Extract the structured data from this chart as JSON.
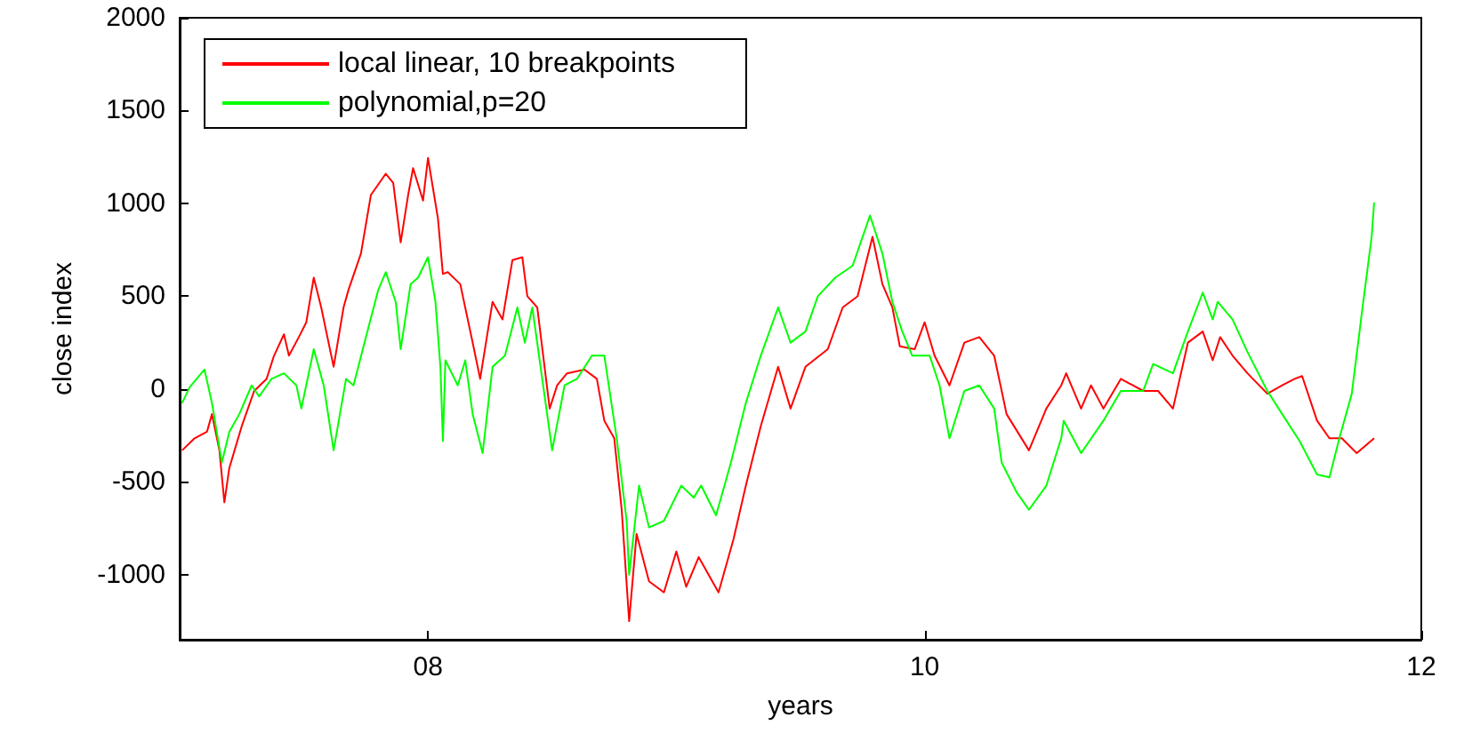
{
  "chart_data": {
    "type": "line",
    "xlabel": "years",
    "ylabel": "close index",
    "xlim": [
      7,
      12
    ],
    "xticks": [
      {
        "value": 8,
        "label": "08"
      },
      {
        "value": 10,
        "label": "10"
      },
      {
        "value": 12,
        "label": "12"
      }
    ],
    "ylim": [
      -1350,
      2000
    ],
    "yticks": [
      -1000,
      -500,
      0,
      500,
      1000,
      1500,
      2000
    ],
    "grid": false,
    "legend": "top left",
    "marker": "none",
    "line_style": "solid",
    "series": [
      {
        "name": "local linear, 10 breakpoints",
        "color": "#ff0000",
        "x": [
          7.01,
          7.06,
          7.11,
          7.13,
          7.16,
          7.18,
          7.2,
          7.25,
          7.3,
          7.35,
          7.38,
          7.42,
          7.44,
          7.48,
          7.51,
          7.54,
          7.57,
          7.62,
          7.66,
          7.68,
          7.73,
          7.77,
          7.83,
          7.86,
          7.89,
          7.92,
          7.94,
          7.98,
          8.0,
          8.04,
          8.06,
          8.08,
          8.13,
          8.18,
          8.21,
          8.26,
          8.3,
          8.34,
          8.38,
          8.4,
          8.44,
          8.49,
          8.52,
          8.56,
          8.63,
          8.68,
          8.71,
          8.75,
          8.78,
          8.81,
          8.84,
          8.89,
          8.95,
          9.0,
          9.04,
          9.09,
          9.17,
          9.23,
          9.28,
          9.34,
          9.41,
          9.46,
          9.52,
          9.61,
          9.67,
          9.73,
          9.79,
          9.83,
          9.87,
          9.9,
          9.96,
          10.0,
          10.04,
          10.1,
          10.16,
          10.22,
          10.28,
          10.33,
          10.42,
          10.49,
          10.55,
          10.57,
          10.63,
          10.67,
          10.72,
          10.79,
          10.88,
          10.94,
          11.0,
          11.06,
          11.12,
          11.16,
          11.19,
          11.24,
          11.3,
          11.38,
          11.44,
          11.49,
          11.52,
          11.58,
          11.63,
          11.68,
          11.74,
          11.81
        ],
        "values": [
          -330,
          -265,
          -230,
          -135,
          -330,
          -610,
          -425,
          -200,
          -10,
          55,
          180,
          295,
          180,
          280,
          360,
          600,
          440,
          120,
          440,
          535,
          730,
          1045,
          1160,
          1110,
          790,
          1045,
          1190,
          1015,
          1245,
          920,
          620,
          630,
          565,
          250,
          55,
          470,
          375,
          695,
          710,
          500,
          440,
          -105,
          20,
          85,
          105,
          55,
          -170,
          -265,
          -650,
          -1250,
          -780,
          -1035,
          -1095,
          -875,
          -1065,
          -905,
          -1095,
          -810,
          -520,
          -200,
          120,
          -105,
          120,
          215,
          440,
          500,
          820,
          565,
          440,
          230,
          215,
          360,
          180,
          20,
          250,
          280,
          180,
          -135,
          -330,
          -105,
          20,
          85,
          -105,
          20,
          -105,
          55,
          -10,
          -10,
          -105,
          250,
          310,
          155,
          280,
          180,
          85,
          -25,
          20,
          55,
          70,
          -170,
          -265,
          -265,
          -345,
          -265
        ]
      },
      {
        "name": "polynomial,p=20",
        "color": "#00ff00",
        "x": [
          7.01,
          7.04,
          7.1,
          7.13,
          7.17,
          7.2,
          7.24,
          7.29,
          7.32,
          7.37,
          7.42,
          7.47,
          7.49,
          7.54,
          7.58,
          7.62,
          7.67,
          7.7,
          7.75,
          7.8,
          7.83,
          7.87,
          7.89,
          7.93,
          7.96,
          8.0,
          8.03,
          8.05,
          8.06,
          8.07,
          8.12,
          8.15,
          8.18,
          8.22,
          8.26,
          8.31,
          8.36,
          8.39,
          8.42,
          8.46,
          8.5,
          8.55,
          8.6,
          8.66,
          8.71,
          8.76,
          8.8,
          8.81,
          8.85,
          8.89,
          8.95,
          9.02,
          9.07,
          9.1,
          9.16,
          9.22,
          9.28,
          9.34,
          9.41,
          9.46,
          9.52,
          9.57,
          9.64,
          9.71,
          9.78,
          9.83,
          9.87,
          9.91,
          9.95,
          10.02,
          10.06,
          10.1,
          10.16,
          10.22,
          10.28,
          10.31,
          10.37,
          10.42,
          10.49,
          10.55,
          10.56,
          10.63,
          10.72,
          10.79,
          10.88,
          10.92,
          11.0,
          11.06,
          11.12,
          11.16,
          11.18,
          11.24,
          11.3,
          11.38,
          11.44,
          11.51,
          11.58,
          11.63,
          11.67,
          11.72,
          11.76,
          11.8,
          11.81
        ],
        "values": [
          -75,
          10,
          105,
          -75,
          -395,
          -230,
          -135,
          20,
          -40,
          55,
          85,
          20,
          -105,
          215,
          20,
          -330,
          55,
          20,
          280,
          535,
          630,
          470,
          215,
          565,
          600,
          710,
          470,
          120,
          -280,
          155,
          20,
          155,
          -135,
          -345,
          120,
          180,
          440,
          250,
          440,
          55,
          -330,
          20,
          55,
          180,
          180,
          -265,
          -710,
          -1000,
          -520,
          -745,
          -710,
          -520,
          -585,
          -520,
          -680,
          -395,
          -75,
          180,
          440,
          250,
          310,
          500,
          600,
          665,
          935,
          730,
          470,
          310,
          180,
          180,
          20,
          -265,
          -10,
          20,
          -105,
          -395,
          -555,
          -650,
          -520,
          -265,
          -170,
          -345,
          -170,
          -10,
          -10,
          135,
          85,
          310,
          520,
          375,
          470,
          375,
          200,
          -10,
          -135,
          -280,
          -460,
          -475,
          -265,
          -25,
          405,
          820,
          1005
        ]
      }
    ]
  }
}
